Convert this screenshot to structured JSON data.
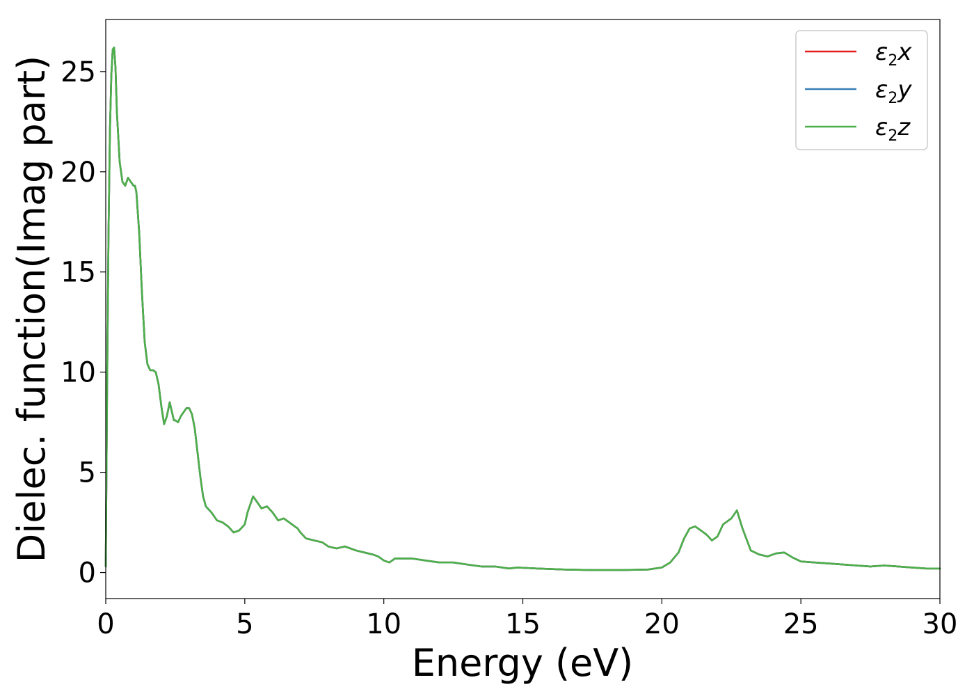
{
  "chart_data": {
    "type": "line",
    "title": "",
    "xlabel": "Energy (eV)",
    "ylabel": "Dielec. function(Imag part)",
    "xlim": [
      0,
      30
    ],
    "ylim": [
      -1.3,
      27.6
    ],
    "xticks": [
      0,
      5,
      10,
      15,
      20,
      25,
      30
    ],
    "yticks": [
      0,
      5,
      10,
      15,
      20,
      25
    ],
    "grid": false,
    "legend_position": "top-right",
    "legend": [
      {
        "symbol": "ε",
        "sub": "2",
        "var": "x",
        "color": "#e41a1c"
      },
      {
        "symbol": "ε",
        "sub": "2",
        "var": "y",
        "color": "#377eb8"
      },
      {
        "symbol": "ε",
        "sub": "2",
        "var": "z",
        "color": "#4daf4a"
      }
    ],
    "x": [
      0.0,
      0.05,
      0.1,
      0.15,
      0.2,
      0.25,
      0.3,
      0.35,
      0.4,
      0.5,
      0.6,
      0.7,
      0.75,
      0.8,
      0.9,
      1.0,
      1.05,
      1.1,
      1.2,
      1.25,
      1.3,
      1.4,
      1.5,
      1.6,
      1.7,
      1.8,
      1.9,
      2.0,
      2.1,
      2.2,
      2.3,
      2.4,
      2.45,
      2.5,
      2.6,
      2.7,
      2.8,
      2.9,
      3.0,
      3.1,
      3.2,
      3.3,
      3.4,
      3.5,
      3.6,
      3.8,
      4.0,
      4.2,
      4.4,
      4.6,
      4.8,
      5.0,
      5.1,
      5.2,
      5.3,
      5.4,
      5.6,
      5.8,
      6.0,
      6.1,
      6.2,
      6.4,
      6.6,
      6.8,
      6.9,
      7.0,
      7.2,
      7.5,
      7.8,
      8.0,
      8.3,
      8.6,
      8.8,
      9.0,
      9.3,
      9.6,
      9.8,
      10.0,
      10.2,
      10.4,
      10.7,
      11.0,
      11.5,
      12.0,
      12.5,
      13.0,
      13.5,
      14.0,
      14.5,
      14.8,
      15.5,
      16.5,
      17.5,
      18.5,
      19.5,
      20.0,
      20.3,
      20.6,
      20.8,
      21.0,
      21.2,
      21.4,
      21.6,
      21.8,
      22.0,
      22.2,
      22.4,
      22.5,
      22.7,
      22.9,
      23.2,
      23.5,
      23.8,
      24.1,
      24.4,
      24.7,
      25.0,
      25.5,
      26.0,
      26.5,
      27.0,
      27.5,
      28.0,
      28.5,
      29.0,
      29.5,
      30.0
    ],
    "series": [
      {
        "name": "ε2x",
        "color": "#e41a1c",
        "values": [
          0.3,
          9.5,
          17.0,
          22.0,
          24.8,
          26.1,
          26.2,
          25.2,
          23.0,
          20.5,
          19.5,
          19.3,
          19.5,
          19.7,
          19.5,
          19.3,
          19.3,
          19.0,
          17.0,
          15.5,
          14.0,
          11.5,
          10.4,
          10.1,
          10.1,
          10.0,
          9.4,
          8.3,
          7.4,
          7.8,
          8.5,
          7.9,
          7.6,
          7.6,
          7.5,
          7.8,
          8.0,
          8.2,
          8.2,
          7.9,
          7.2,
          6.0,
          4.8,
          3.8,
          3.3,
          3.0,
          2.6,
          2.5,
          2.3,
          2.0,
          2.1,
          2.4,
          3.0,
          3.4,
          3.8,
          3.6,
          3.2,
          3.3,
          3.0,
          2.8,
          2.6,
          2.7,
          2.5,
          2.3,
          2.2,
          2.0,
          1.7,
          1.6,
          1.5,
          1.3,
          1.2,
          1.3,
          1.2,
          1.1,
          1.0,
          0.9,
          0.8,
          0.6,
          0.5,
          0.7,
          0.7,
          0.7,
          0.6,
          0.5,
          0.5,
          0.4,
          0.3,
          0.3,
          0.2,
          0.25,
          0.2,
          0.15,
          0.12,
          0.12,
          0.15,
          0.25,
          0.5,
          1.0,
          1.7,
          2.2,
          2.3,
          2.1,
          1.9,
          1.6,
          1.8,
          2.4,
          2.6,
          2.7,
          3.1,
          2.2,
          1.1,
          0.9,
          0.8,
          0.95,
          1.0,
          0.75,
          0.55,
          0.5,
          0.45,
          0.4,
          0.35,
          0.3,
          0.35,
          0.3,
          0.25,
          0.2,
          0.2
        ]
      },
      {
        "name": "ε2y",
        "color": "#377eb8",
        "values": [
          0.3,
          9.5,
          17.0,
          22.0,
          24.8,
          26.1,
          26.2,
          25.2,
          23.0,
          20.5,
          19.5,
          19.3,
          19.5,
          19.7,
          19.5,
          19.3,
          19.3,
          19.0,
          17.0,
          15.5,
          14.0,
          11.5,
          10.4,
          10.1,
          10.1,
          10.0,
          9.4,
          8.3,
          7.4,
          7.8,
          8.5,
          7.9,
          7.6,
          7.6,
          7.5,
          7.8,
          8.0,
          8.2,
          8.2,
          7.9,
          7.2,
          6.0,
          4.8,
          3.8,
          3.3,
          3.0,
          2.6,
          2.5,
          2.3,
          2.0,
          2.1,
          2.4,
          3.0,
          3.4,
          3.8,
          3.6,
          3.2,
          3.3,
          3.0,
          2.8,
          2.6,
          2.7,
          2.5,
          2.3,
          2.2,
          2.0,
          1.7,
          1.6,
          1.5,
          1.3,
          1.2,
          1.3,
          1.2,
          1.1,
          1.0,
          0.9,
          0.8,
          0.6,
          0.5,
          0.7,
          0.7,
          0.7,
          0.6,
          0.5,
          0.5,
          0.4,
          0.3,
          0.3,
          0.2,
          0.25,
          0.2,
          0.15,
          0.12,
          0.12,
          0.15,
          0.25,
          0.5,
          1.0,
          1.7,
          2.2,
          2.3,
          2.1,
          1.9,
          1.6,
          1.8,
          2.4,
          2.6,
          2.7,
          3.1,
          2.2,
          1.1,
          0.9,
          0.8,
          0.95,
          1.0,
          0.75,
          0.55,
          0.5,
          0.45,
          0.4,
          0.35,
          0.3,
          0.35,
          0.3,
          0.25,
          0.2,
          0.2
        ]
      },
      {
        "name": "ε2z",
        "color": "#4daf4a",
        "values": [
          0.3,
          9.5,
          17.0,
          22.0,
          24.8,
          26.1,
          26.2,
          25.2,
          23.0,
          20.5,
          19.5,
          19.3,
          19.5,
          19.7,
          19.5,
          19.3,
          19.3,
          19.0,
          17.0,
          15.5,
          14.0,
          11.5,
          10.4,
          10.1,
          10.1,
          10.0,
          9.4,
          8.3,
          7.4,
          7.8,
          8.5,
          7.9,
          7.6,
          7.6,
          7.5,
          7.8,
          8.0,
          8.2,
          8.2,
          7.9,
          7.2,
          6.0,
          4.8,
          3.8,
          3.3,
          3.0,
          2.6,
          2.5,
          2.3,
          2.0,
          2.1,
          2.4,
          3.0,
          3.4,
          3.8,
          3.6,
          3.2,
          3.3,
          3.0,
          2.8,
          2.6,
          2.7,
          2.5,
          2.3,
          2.2,
          2.0,
          1.7,
          1.6,
          1.5,
          1.3,
          1.2,
          1.3,
          1.2,
          1.1,
          1.0,
          0.9,
          0.8,
          0.6,
          0.5,
          0.7,
          0.7,
          0.7,
          0.6,
          0.5,
          0.5,
          0.4,
          0.3,
          0.3,
          0.2,
          0.25,
          0.2,
          0.15,
          0.12,
          0.12,
          0.15,
          0.25,
          0.5,
          1.0,
          1.7,
          2.2,
          2.3,
          2.1,
          1.9,
          1.6,
          1.8,
          2.4,
          2.6,
          2.7,
          3.1,
          2.2,
          1.1,
          0.9,
          0.8,
          0.95,
          1.0,
          0.75,
          0.55,
          0.5,
          0.45,
          0.4,
          0.35,
          0.3,
          0.35,
          0.3,
          0.25,
          0.2,
          0.2
        ]
      }
    ]
  }
}
